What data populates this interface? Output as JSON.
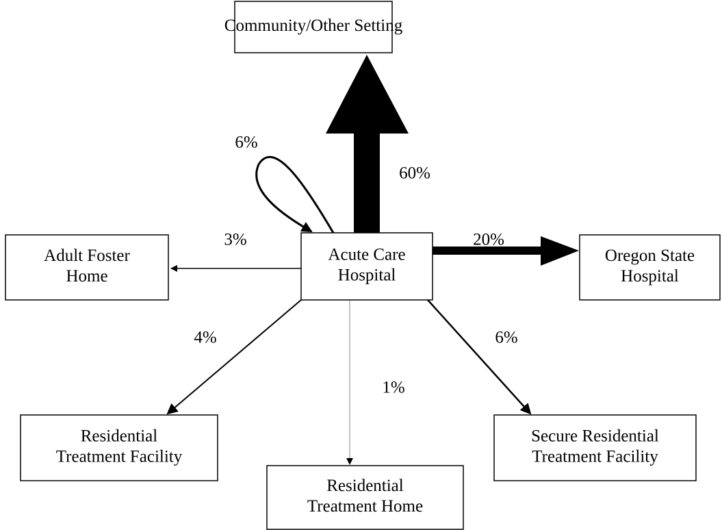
{
  "nodes": [
    {
      "lines": [
        "Community/Other Setting"
      ]
    },
    {
      "lines": [
        "Acute Care",
        "Hospital"
      ]
    },
    {
      "lines": [
        "Adult Foster",
        "Home"
      ]
    },
    {
      "lines": [
        "Oregon State",
        "Hospital"
      ]
    },
    {
      "lines": [
        "Residential",
        "Treatment Facility"
      ]
    },
    {
      "lines": [
        "Residential",
        "Treatment Home"
      ]
    },
    {
      "lines": [
        "Secure Residential",
        "Treatment Facility"
      ]
    }
  ],
  "edges": [
    {
      "from": "Acute Care Hospital",
      "to": "Community/Other Setting",
      "label": "60%"
    },
    {
      "from": "Acute Care Hospital",
      "to": "Acute Care Hospital",
      "label": "6%"
    },
    {
      "from": "Acute Care Hospital",
      "to": "Adult Foster Home",
      "label": "3%"
    },
    {
      "from": "Acute Care Hospital",
      "to": "Oregon State Hospital",
      "label": "20%"
    },
    {
      "from": "Acute Care Hospital",
      "to": "Residential Treatment Facility",
      "label": "4%"
    },
    {
      "from": "Acute Care Hospital",
      "to": "Residential Treatment Home",
      "label": "1%"
    },
    {
      "from": "Acute Care Hospital",
      "to": "Secure Residential Treatment Facility",
      "label": "6%"
    }
  ]
}
